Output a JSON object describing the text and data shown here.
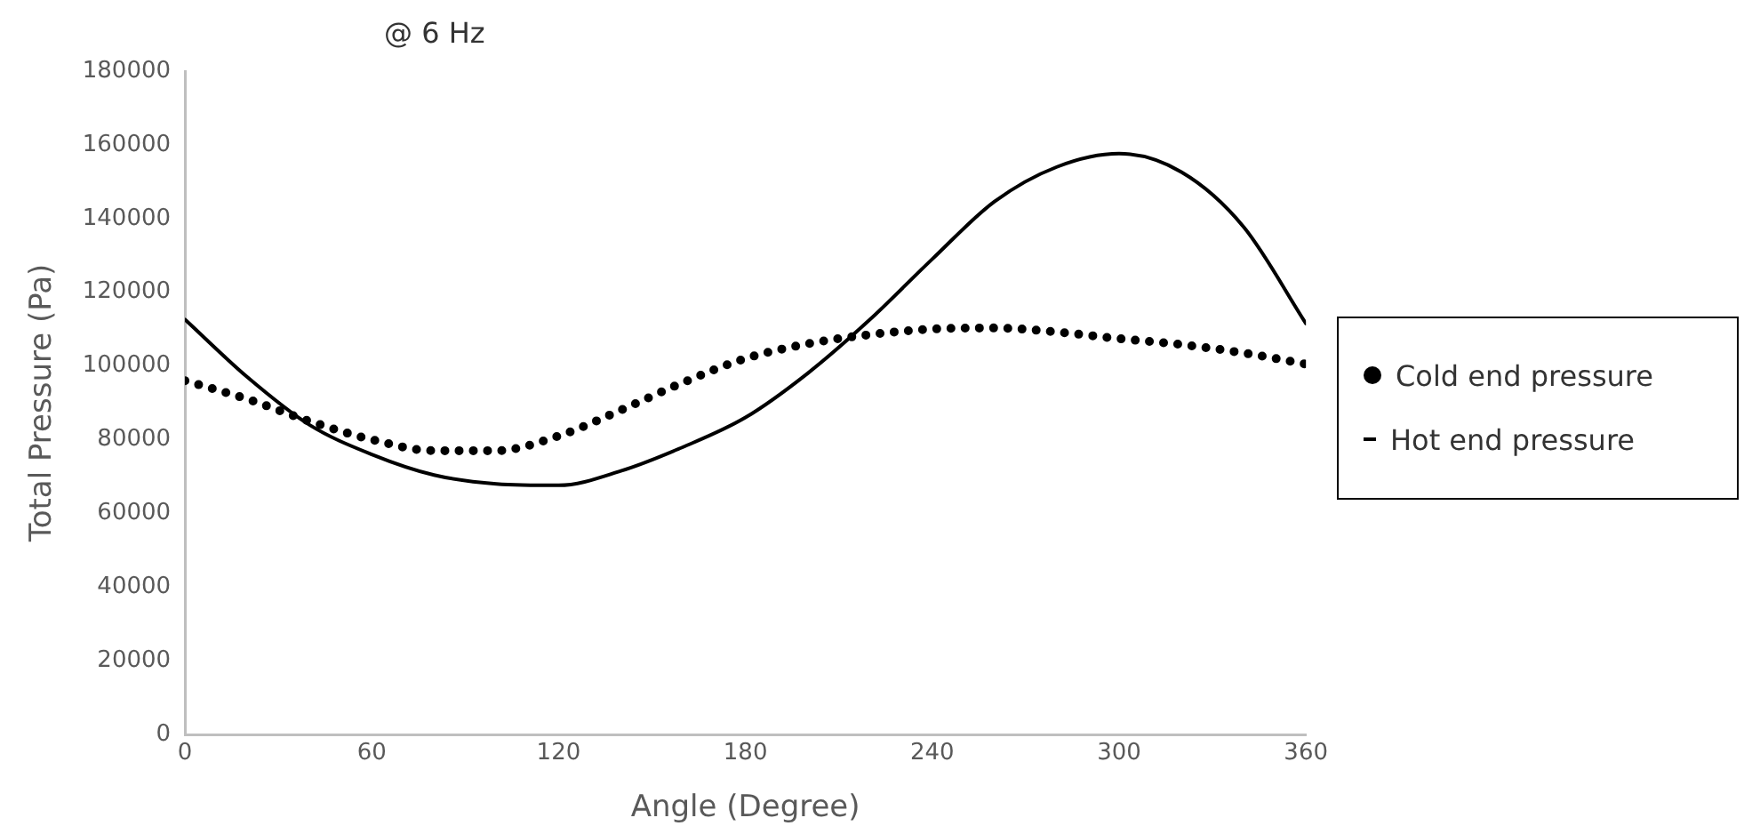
{
  "chart_data": {
    "type": "line",
    "title": "@ 6 Hz",
    "xlabel": "Angle (Degree)",
    "ylabel": "Total Pressure (Pa)",
    "x": [
      0,
      20,
      40,
      60,
      80,
      100,
      120,
      140,
      160,
      180,
      200,
      220,
      240,
      260,
      280,
      300,
      320,
      340,
      360
    ],
    "series": [
      {
        "name": "Cold end pressure",
        "color": "#000000",
        "line_style": "dotted",
        "values": [
          96000,
          91000,
          85000,
          80000,
          77000,
          77000,
          81000,
          88000,
          95500,
          102000,
          106000,
          108500,
          110000,
          110300,
          109200,
          107400,
          105800,
          103500,
          100500
        ]
      },
      {
        "name": "Hot end pressure",
        "color": "#000000",
        "line_style": "solid",
        "values": [
          112600,
          97000,
          84000,
          76000,
          70400,
          68000,
          67600,
          71500,
          78000,
          86000,
          98000,
          112600,
          129000,
          144600,
          154000,
          157600,
          152600,
          137700,
          111500
        ]
      }
    ],
    "xlim": [
      0,
      360
    ],
    "xticks": [
      0,
      60,
      120,
      180,
      240,
      300,
      360
    ],
    "ylim": [
      0,
      180000
    ],
    "yticks": [
      0,
      20000,
      40000,
      60000,
      80000,
      100000,
      120000,
      140000,
      160000,
      180000
    ],
    "grid": false,
    "legend": "right",
    "marker": "none"
  }
}
